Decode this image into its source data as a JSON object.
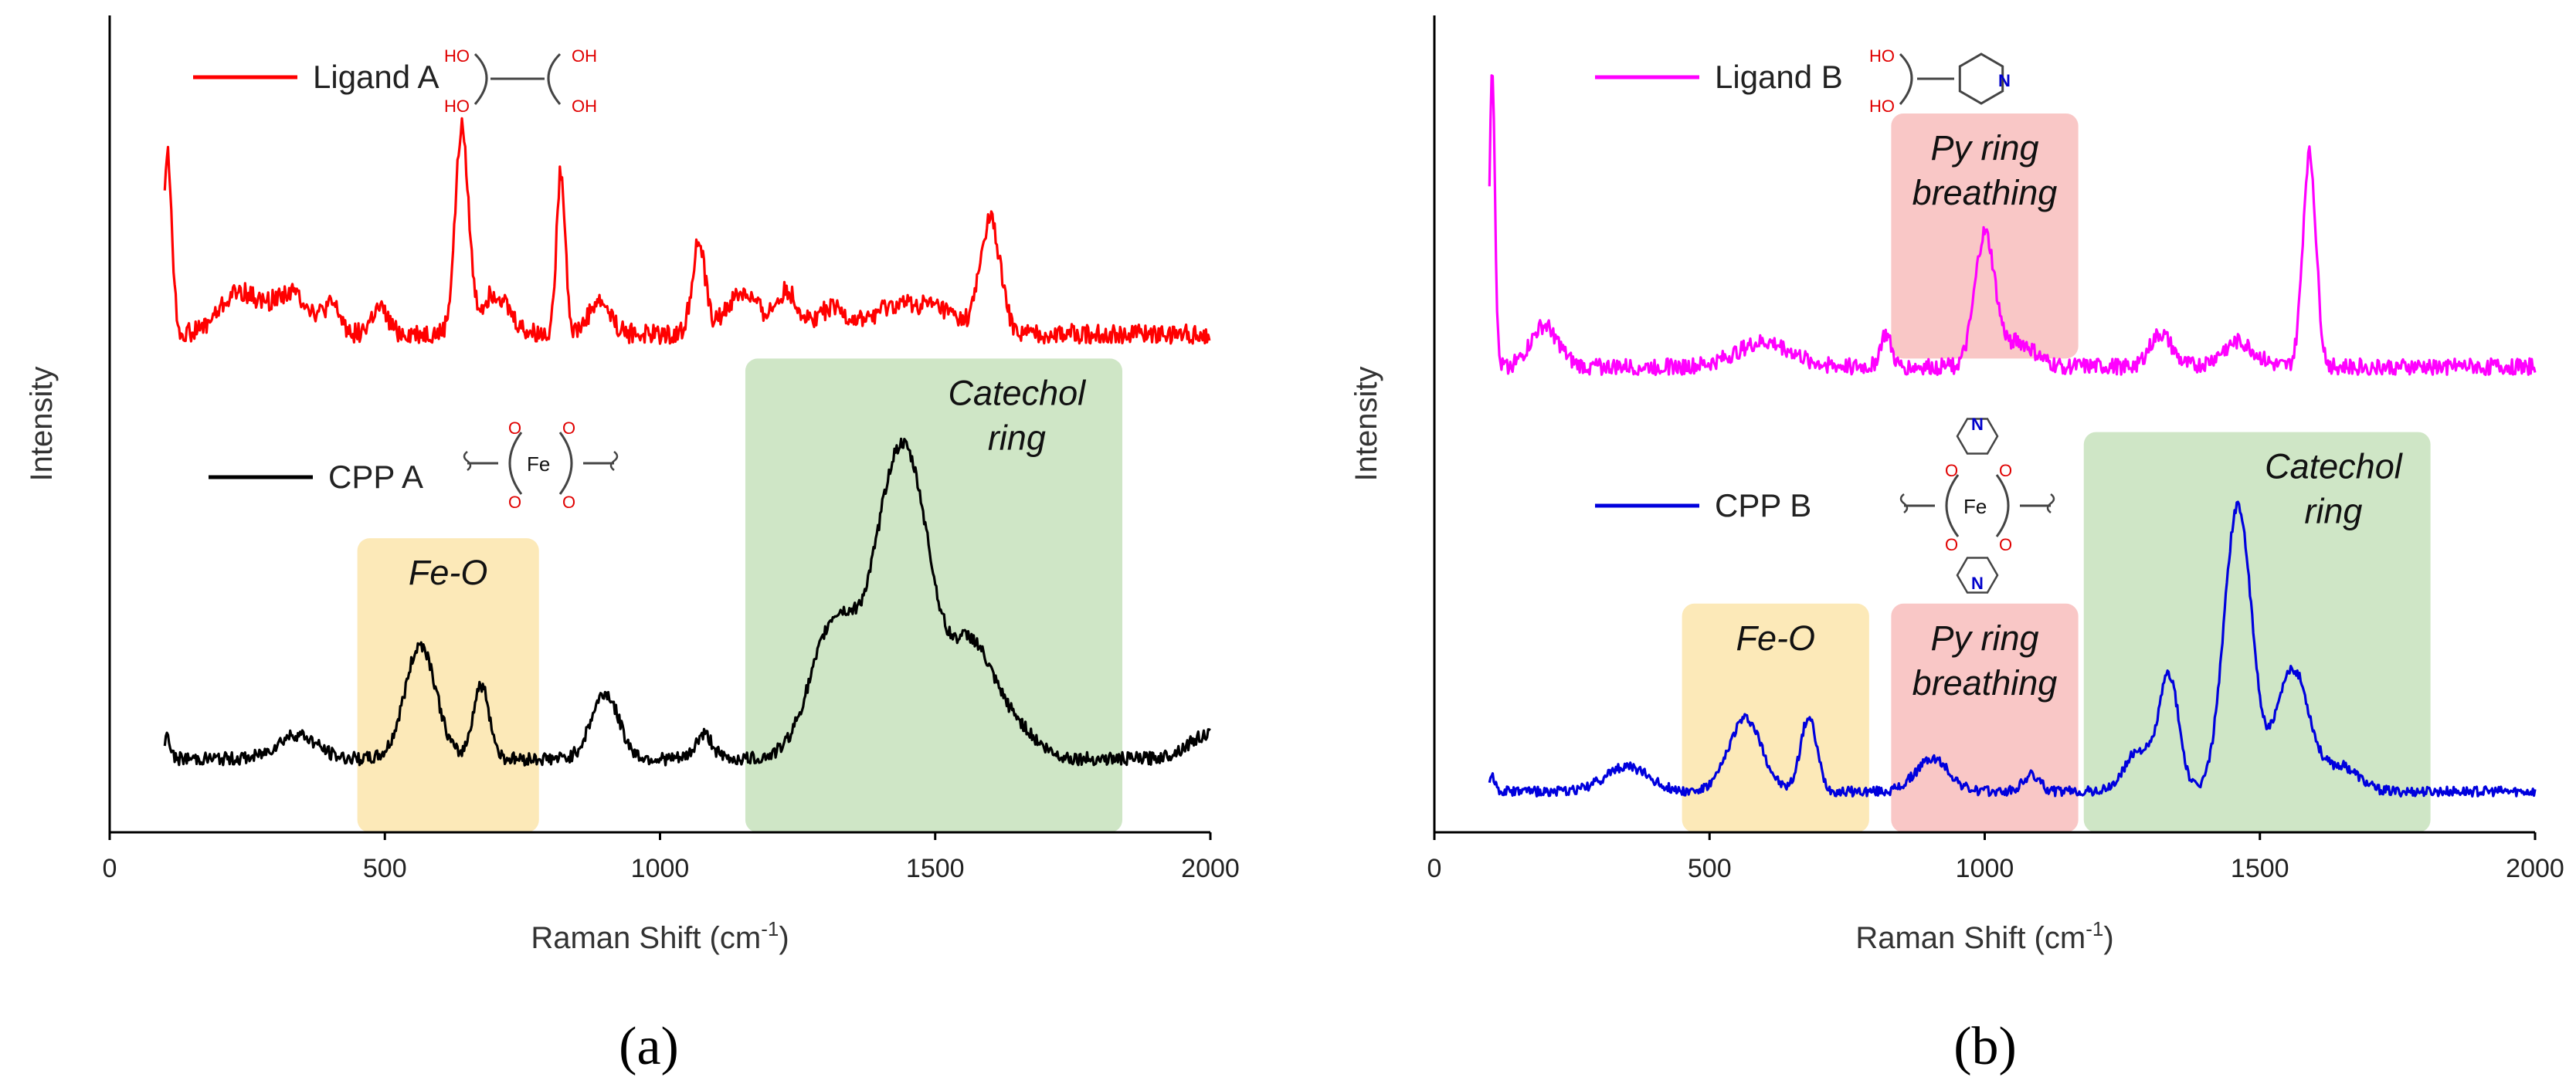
{
  "chart_data": [
    {
      "id": "a",
      "type": "line",
      "panel_label": "(a)",
      "xlabel": "Raman Shift (cm",
      "xlabel_sup": "-1",
      "xlabel_close": ")",
      "ylabel": "Intensity",
      "xlim": [
        0,
        2000
      ],
      "ylim": [
        0,
        100
      ],
      "xticks": [
        0,
        500,
        1000,
        1500,
        2000
      ],
      "regions": [
        {
          "name": "fe-o",
          "lines": [
            "Fe-O"
          ],
          "x_range": [
            450,
            780
          ],
          "y_range": [
            0,
            36
          ],
          "color": "#fce9b8"
        },
        {
          "name": "catechol",
          "lines": [
            "Catechol",
            "ring"
          ],
          "x_range": [
            1155,
            1840
          ],
          "y_range": [
            0,
            58
          ],
          "color": "#cfe6c6"
        }
      ],
      "series": [
        {
          "name": "Ligand A",
          "color": "#ff0000",
          "baseline": 61,
          "noise": 1.2,
          "peaks": [
            [
              105,
              22,
              8
            ],
            [
              235,
              5,
              35
            ],
            [
              330,
              5,
              35
            ],
            [
              405,
              3,
              15
            ],
            [
              490,
              3,
              15
            ],
            [
              640,
              25,
              12
            ],
            [
              700,
              5,
              25
            ],
            [
              820,
              20,
              8
            ],
            [
              890,
              4,
              20
            ],
            [
              1070,
              11,
              12
            ],
            [
              1150,
              5,
              30
            ],
            [
              1230,
              5,
              20
            ],
            [
              1310,
              3,
              30
            ],
            [
              1420,
              3,
              40
            ],
            [
              1500,
              3,
              40
            ],
            [
              1600,
              14,
              18
            ]
          ],
          "legend": "Ligand A",
          "structure": "diol"
        },
        {
          "name": "CPP A",
          "color": "#000000",
          "baseline": 9,
          "noise": 0.8,
          "peaks": [
            [
              105,
              3,
              5
            ],
            [
              340,
              3,
              35
            ],
            [
              565,
              14,
              28
            ],
            [
              675,
              9,
              15
            ],
            [
              900,
              8,
              25
            ],
            [
              1080,
              3,
              15
            ],
            [
              1320,
              17,
              45
            ],
            [
              1430,
              34,
              40
            ],
            [
              1480,
              12,
              30
            ],
            [
              1560,
              14,
              40
            ],
            [
              1640,
              4,
              40
            ],
            [
              2000,
              3,
              40
            ]
          ],
          "legend": "CPP A",
          "structure": "fe-catecholate"
        }
      ]
    },
    {
      "id": "b",
      "type": "line",
      "panel_label": "(b)",
      "xlabel": "Raman Shift (cm",
      "xlabel_sup": "-1",
      "xlabel_close": ")",
      "ylabel": "Intensity",
      "xlim": [
        0,
        2000
      ],
      "ylim": [
        0,
        100
      ],
      "xticks": [
        0,
        500,
        1000,
        1500,
        2000
      ],
      "regions": [
        {
          "name": "fe-o",
          "lines": [
            "Fe-O"
          ],
          "x_range": [
            450,
            790
          ],
          "y_range": [
            0,
            28
          ],
          "color": "#fce9b8"
        },
        {
          "name": "py-ring-lower",
          "lines": [
            "Py ring",
            "breathing"
          ],
          "x_range": [
            830,
            1170
          ],
          "y_range": [
            0,
            28
          ],
          "color": "#f9c7c6"
        },
        {
          "name": "catechol",
          "lines": [
            "Catechol",
            "ring"
          ],
          "x_range": [
            1180,
            1810
          ],
          "y_range": [
            0,
            49
          ],
          "color": "#cfe6c6"
        },
        {
          "name": "py-ring-upper",
          "lines": [
            "Py ring",
            "breathing"
          ],
          "x_range": [
            830,
            1170
          ],
          "y_range": [
            58,
            88
          ],
          "color": "#f9c7c6"
        }
      ],
      "series": [
        {
          "name": "Ligand B",
          "color": "#ff00ff",
          "baseline": 57,
          "noise": 1.0,
          "peaks": [
            [
              105,
              37,
              5
            ],
            [
              200,
              5,
              25
            ],
            [
              600,
              3,
              50
            ],
            [
              820,
              4,
              10
            ],
            [
              1000,
              16,
              18
            ],
            [
              1060,
              3,
              30
            ],
            [
              1320,
              4,
              20
            ],
            [
              1460,
              3,
              30
            ],
            [
              1590,
              26,
              12
            ]
          ],
          "legend": "Ligand B",
          "structure": "pyridyl-diol"
        },
        {
          "name": "CPP B",
          "color": "#0000dd",
          "baseline": 5,
          "noise": 0.6,
          "peaks": [
            [
              105,
              2,
              5
            ],
            [
              350,
              3,
              40
            ],
            [
              565,
              9,
              30
            ],
            [
              680,
              9,
              15
            ],
            [
              905,
              4,
              30
            ],
            [
              1085,
              2,
              15
            ],
            [
              1280,
              5,
              25
            ],
            [
              1335,
              14,
              18
            ],
            [
              1460,
              35,
              25
            ],
            [
              1560,
              15,
              30
            ],
            [
              1650,
              3,
              30
            ]
          ],
          "legend": "CPP B",
          "structure": "fe-catecholate-pyridine"
        }
      ]
    }
  ]
}
